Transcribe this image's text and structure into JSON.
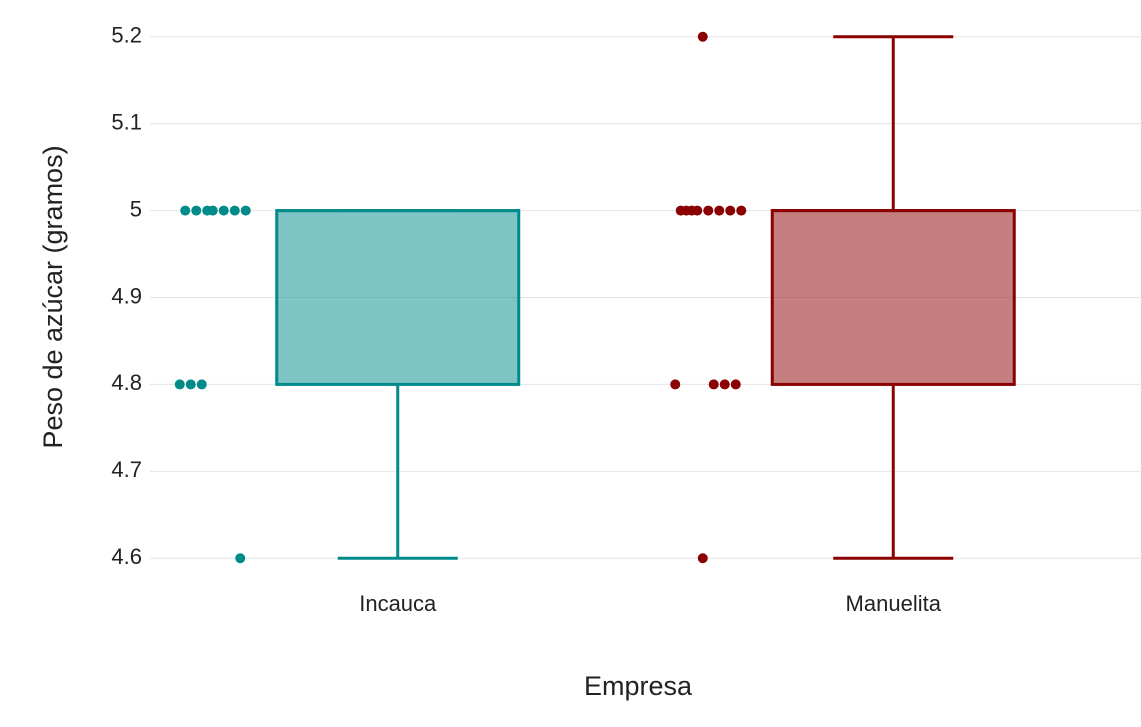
{
  "chart_data": {
    "type": "box",
    "x_label": "Empresa",
    "y_label": "Peso de azúcar (gramos)",
    "categories": [
      "Incauca",
      "Manuelita"
    ],
    "colors": [
      "#008b8b",
      "#8b0000"
    ],
    "boxes": [
      {
        "min": 4.6,
        "q1": 4.8,
        "median": 5.0,
        "q3": 5.0,
        "max": 5.0
      },
      {
        "min": 4.6,
        "q1": 4.8,
        "median": 5.0,
        "q3": 5.0,
        "max": 5.2
      }
    ],
    "points": [
      [
        5.0,
        5.0,
        5.0,
        5.0,
        5.0,
        5.0,
        5.0,
        4.8,
        4.8,
        4.8,
        4.6
      ],
      [
        5.2,
        5.0,
        5.0,
        5.0,
        5.0,
        5.0,
        5.0,
        5.0,
        5.0,
        4.8,
        4.8,
        4.8,
        4.8,
        4.6
      ]
    ],
    "ylim": [
      4.575,
      5.225
    ],
    "yticks": [
      4.6,
      4.7,
      4.8,
      4.9,
      5,
      5.1,
      5.2
    ],
    "grid": true
  }
}
